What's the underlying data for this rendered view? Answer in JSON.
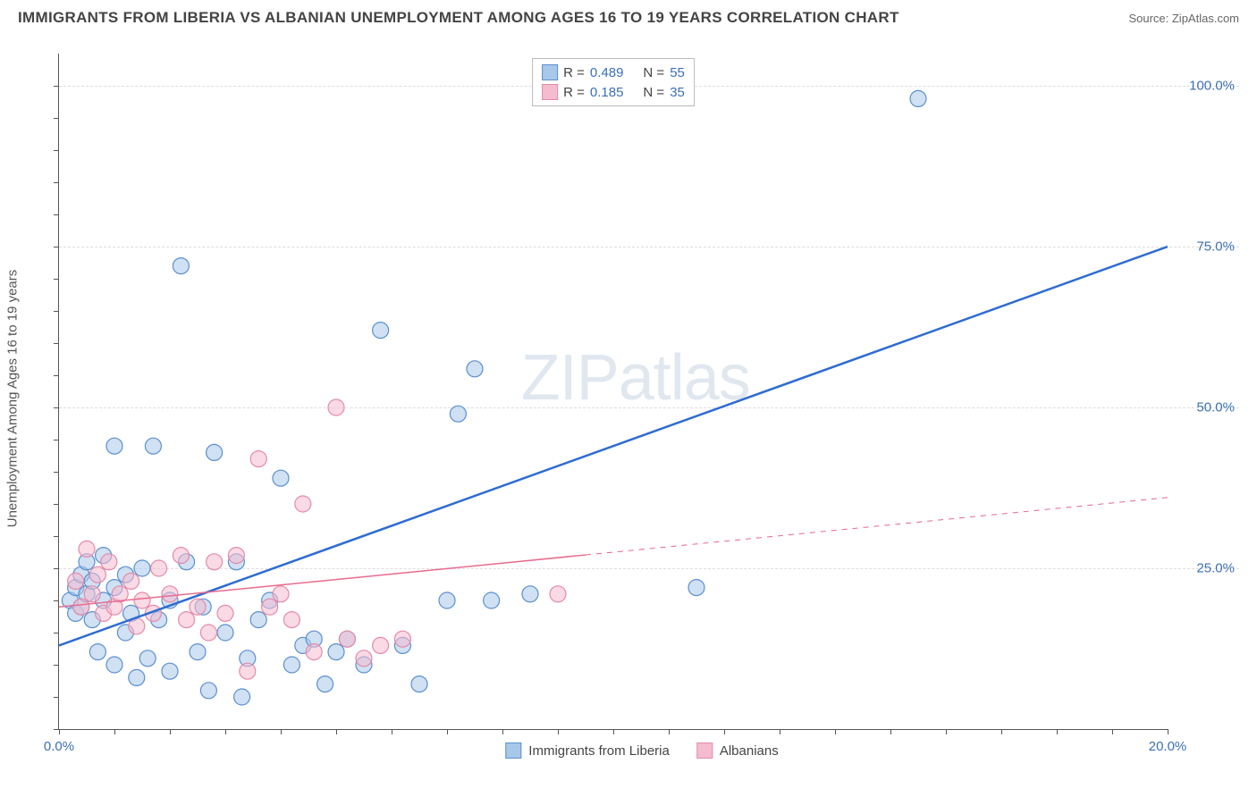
{
  "header": {
    "title": "IMMIGRANTS FROM LIBERIA VS ALBANIAN UNEMPLOYMENT AMONG AGES 16 TO 19 YEARS CORRELATION CHART",
    "source": "Source: ZipAtlas.com"
  },
  "chart": {
    "type": "scatter",
    "y_axis_label": "Unemployment Among Ages 16 to 19 years",
    "xlim": [
      0,
      20
    ],
    "ylim": [
      0,
      105
    ],
    "x_ticks": [
      {
        "pos": 0,
        "label": "0.0%"
      },
      {
        "pos": 20,
        "label": "20.0%"
      }
    ],
    "y_ticks": [
      {
        "pos": 25,
        "label": "25.0%"
      },
      {
        "pos": 50,
        "label": "50.0%"
      },
      {
        "pos": 75,
        "label": "75.0%"
      },
      {
        "pos": 100,
        "label": "100.0%"
      }
    ],
    "grid_color": "#dddddd",
    "background_color": "#ffffff",
    "watermark": "ZIPatlas",
    "series": [
      {
        "name": "Immigrants from Liberia",
        "fill_color": "#a8c8ea",
        "stroke_color": "#5b8fd0",
        "line_color": "#2e6cd1",
        "marker_radius": 9,
        "marker_opacity": 0.55,
        "r_value": "0.489",
        "n_value": "55",
        "trend": {
          "x1": 0,
          "y1": 13,
          "x2": 20,
          "y2": 75,
          "solid_until_x": 20,
          "width": 2.5
        },
        "points": [
          [
            0.2,
            20
          ],
          [
            0.3,
            22
          ],
          [
            0.3,
            18
          ],
          [
            0.4,
            24
          ],
          [
            0.4,
            19
          ],
          [
            0.5,
            21
          ],
          [
            0.5,
            26
          ],
          [
            0.6,
            17
          ],
          [
            0.6,
            23
          ],
          [
            0.7,
            12
          ],
          [
            0.8,
            20
          ],
          [
            0.8,
            27
          ],
          [
            1.0,
            10
          ],
          [
            1.0,
            22
          ],
          [
            1.2,
            24
          ],
          [
            1.2,
            15
          ],
          [
            1.3,
            18
          ],
          [
            1.4,
            8
          ],
          [
            1.5,
            25
          ],
          [
            1.6,
            11
          ],
          [
            1.7,
            44
          ],
          [
            1.8,
            17
          ],
          [
            2.0,
            20
          ],
          [
            2.0,
            9
          ],
          [
            2.2,
            72
          ],
          [
            2.3,
            26
          ],
          [
            2.5,
            12
          ],
          [
            2.6,
            19
          ],
          [
            2.7,
            6
          ],
          [
            2.8,
            43
          ],
          [
            3.0,
            15
          ],
          [
            3.2,
            26
          ],
          [
            3.3,
            5
          ],
          [
            3.4,
            11
          ],
          [
            3.6,
            17
          ],
          [
            3.8,
            20
          ],
          [
            4.0,
            39
          ],
          [
            4.2,
            10
          ],
          [
            4.4,
            13
          ],
          [
            4.6,
            14
          ],
          [
            4.8,
            7
          ],
          [
            5.0,
            12
          ],
          [
            5.2,
            14
          ],
          [
            5.5,
            10
          ],
          [
            5.8,
            62
          ],
          [
            6.2,
            13
          ],
          [
            6.5,
            7
          ],
          [
            7.0,
            20
          ],
          [
            7.2,
            49
          ],
          [
            7.5,
            56
          ],
          [
            7.8,
            20
          ],
          [
            8.5,
            21
          ],
          [
            11.5,
            22
          ],
          [
            15.5,
            98
          ],
          [
            1.0,
            44
          ]
        ]
      },
      {
        "name": "Albanians",
        "fill_color": "#f5bccf",
        "stroke_color": "#e48aa8",
        "line_color": "#e86b8f",
        "marker_radius": 9,
        "marker_opacity": 0.55,
        "r_value": "0.185",
        "n_value": "35",
        "trend": {
          "x1": 0,
          "y1": 19,
          "x2": 20,
          "y2": 36,
          "solid_until_x": 9.5,
          "width": 1.5
        },
        "points": [
          [
            0.3,
            23
          ],
          [
            0.4,
            19
          ],
          [
            0.5,
            28
          ],
          [
            0.6,
            21
          ],
          [
            0.7,
            24
          ],
          [
            0.8,
            18
          ],
          [
            0.9,
            26
          ],
          [
            1.0,
            19
          ],
          [
            1.1,
            21
          ],
          [
            1.3,
            23
          ],
          [
            1.4,
            16
          ],
          [
            1.5,
            20
          ],
          [
            1.7,
            18
          ],
          [
            1.8,
            25
          ],
          [
            2.0,
            21
          ],
          [
            2.2,
            27
          ],
          [
            2.3,
            17
          ],
          [
            2.5,
            19
          ],
          [
            2.7,
            15
          ],
          [
            2.8,
            26
          ],
          [
            3.0,
            18
          ],
          [
            3.2,
            27
          ],
          [
            3.4,
            9
          ],
          [
            3.6,
            42
          ],
          [
            3.8,
            19
          ],
          [
            4.0,
            21
          ],
          [
            4.2,
            17
          ],
          [
            4.4,
            35
          ],
          [
            4.6,
            12
          ],
          [
            5.0,
            50
          ],
          [
            5.2,
            14
          ],
          [
            5.5,
            11
          ],
          [
            5.8,
            13
          ],
          [
            6.2,
            14
          ],
          [
            9.0,
            21
          ]
        ]
      }
    ],
    "legend_top": {
      "r_label": "R =",
      "n_label": "N ="
    }
  }
}
